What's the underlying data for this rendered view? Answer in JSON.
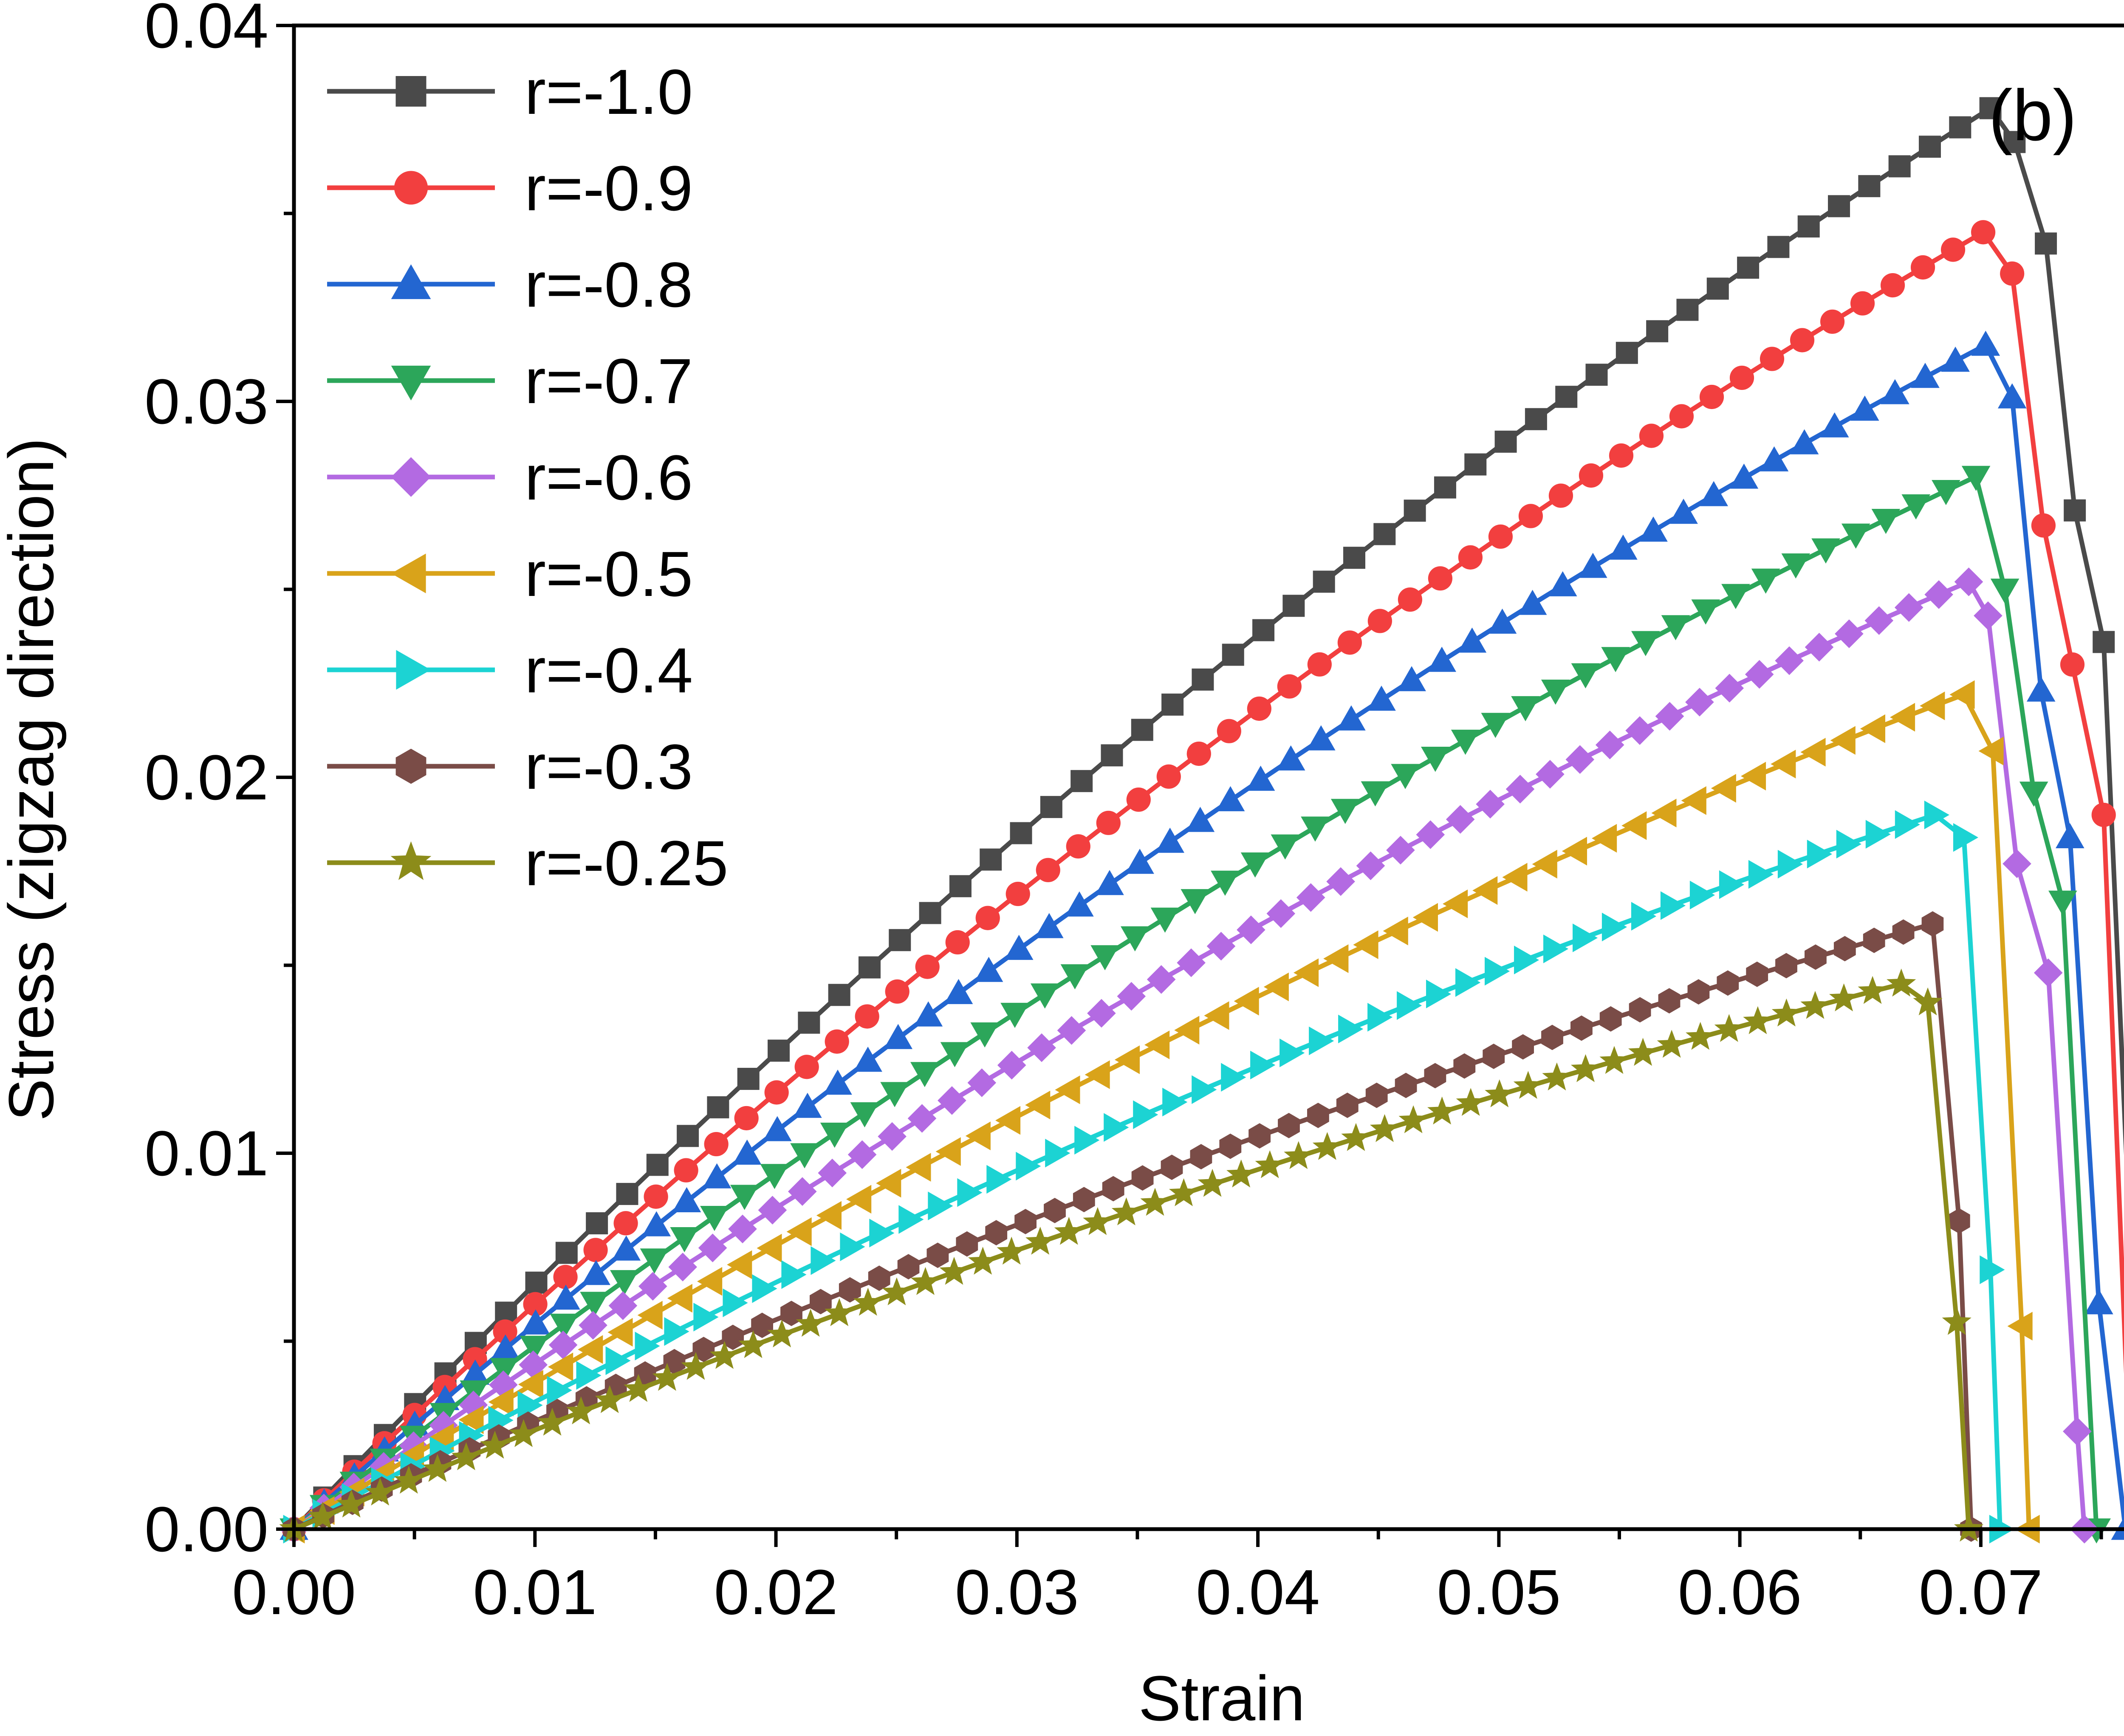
{
  "chart_data": {
    "type": "line",
    "panel_label": "(b)",
    "xlabel": "Strain",
    "ylabel": "Stress (zigzag direction)",
    "xlim": [
      0.0,
      0.077
    ],
    "ylim": [
      0.0,
      0.04
    ],
    "xticks": [
      0.0,
      0.01,
      0.02,
      0.03,
      0.04,
      0.05,
      0.06,
      0.07
    ],
    "xtick_labels": [
      "0.00",
      "0.01",
      "0.02",
      "0.03",
      "0.04",
      "0.05",
      "0.06",
      "0.07"
    ],
    "yticks": [
      0.0,
      0.01,
      0.02,
      0.03,
      0.04
    ],
    "ytick_labels": [
      "0.00",
      "0.01",
      "0.02",
      "0.03",
      "0.04"
    ],
    "legend_position": "top-left",
    "series": [
      {
        "name": "r=-1.0",
        "color": "#4a4a4a",
        "marker": "square",
        "peak_strain": 0.0704,
        "peak_stress": 0.0378,
        "drop": [
          [
            0.0714,
            0.0369
          ],
          [
            0.0727,
            0.0342
          ],
          [
            0.0739,
            0.0271
          ],
          [
            0.0751,
            0.0236
          ],
          [
            0.0764,
            0.0047
          ],
          [
            0.077,
            0.0
          ]
        ]
      },
      {
        "name": "r=-0.9",
        "color": "#f23f3f",
        "marker": "circle",
        "peak_strain": 0.0701,
        "peak_stress": 0.0345,
        "drop": [
          [
            0.0713,
            0.0334
          ],
          [
            0.0726,
            0.0267
          ],
          [
            0.0738,
            0.023
          ],
          [
            0.0751,
            0.019
          ],
          [
            0.0763,
            0.0
          ]
        ]
      },
      {
        "name": "r=-0.8",
        "color": "#2366d1",
        "marker": "triangle-up",
        "peak_strain": 0.0702,
        "peak_stress": 0.0315,
        "drop": [
          [
            0.0713,
            0.0301
          ],
          [
            0.0725,
            0.0223
          ],
          [
            0.0737,
            0.0184
          ],
          [
            0.0749,
            0.006
          ],
          [
            0.076,
            0.0
          ]
        ]
      },
      {
        "name": "r=-0.7",
        "color": "#2ca65a",
        "marker": "triangle-down",
        "peak_strain": 0.0698,
        "peak_stress": 0.028,
        "drop": [
          [
            0.071,
            0.025
          ],
          [
            0.0722,
            0.0196
          ],
          [
            0.0734,
            0.0167
          ],
          [
            0.0748,
            0.0
          ]
        ]
      },
      {
        "name": "r=-0.6",
        "color": "#b36ae2",
        "marker": "diamond",
        "peak_strain": 0.0695,
        "peak_stress": 0.0252,
        "drop": [
          [
            0.0703,
            0.0243
          ],
          [
            0.0715,
            0.0177
          ],
          [
            0.0728,
            0.0148
          ],
          [
            0.074,
            0.0026
          ],
          [
            0.0743,
            0.0
          ]
        ]
      },
      {
        "name": "r=-0.5",
        "color": "#d9a31a",
        "marker": "triangle-left",
        "peak_strain": 0.0693,
        "peak_stress": 0.0222,
        "drop": [
          [
            0.0705,
            0.0207
          ],
          [
            0.0717,
            0.0054
          ],
          [
            0.072,
            0.0
          ]
        ]
      },
      {
        "name": "r=-0.4",
        "color": "#1cd3d3",
        "marker": "triangle-right",
        "peak_strain": 0.0681,
        "peak_stress": 0.019,
        "drop": [
          [
            0.0693,
            0.0184
          ],
          [
            0.0704,
            0.0069
          ],
          [
            0.0708,
            0.0
          ]
        ]
      },
      {
        "name": "r=-0.3",
        "color": "#7a4c47",
        "marker": "hexagon",
        "peak_strain": 0.068,
        "peak_stress": 0.0161,
        "drop": [
          [
            0.0691,
            0.0082
          ],
          [
            0.0696,
            0.0
          ]
        ]
      },
      {
        "name": "r=-0.25",
        "color": "#8c8c1a",
        "marker": "star",
        "peak_strain": 0.0667,
        "peak_stress": 0.0145,
        "drop": [
          [
            0.0678,
            0.014
          ],
          [
            0.069,
            0.0055
          ],
          [
            0.0695,
            0.0
          ]
        ]
      }
    ]
  }
}
